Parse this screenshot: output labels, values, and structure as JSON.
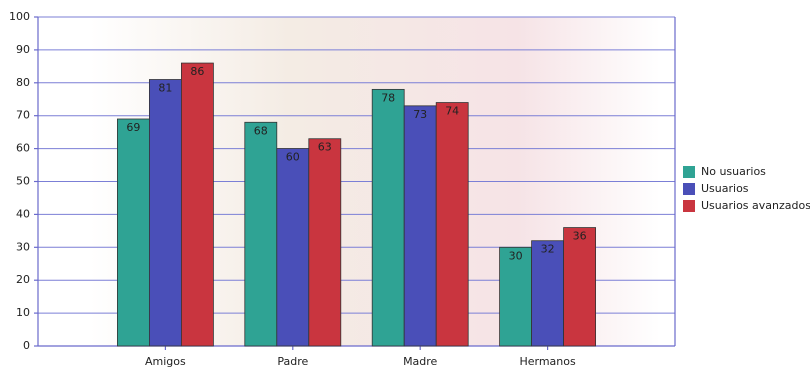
{
  "chart_data": {
    "type": "bar",
    "categories": [
      "Amigos",
      "Padre",
      "Madre",
      "Hermanos"
    ],
    "series": [
      {
        "name": "No usuarios",
        "color": "#2fa394",
        "values": [
          69,
          68,
          78,
          30
        ]
      },
      {
        "name": "Usuarios",
        "color": "#4a4fb8",
        "values": [
          81,
          60,
          73,
          32
        ]
      },
      {
        "name": "Usuarios avanzados",
        "color": "#c9353f",
        "values": [
          86,
          63,
          74,
          36
        ]
      }
    ],
    "ylim": [
      0,
      100
    ],
    "yticks": [
      0,
      10,
      20,
      30,
      40,
      50,
      60,
      70,
      80,
      90,
      100
    ],
    "grid": true,
    "legend": "right"
  }
}
